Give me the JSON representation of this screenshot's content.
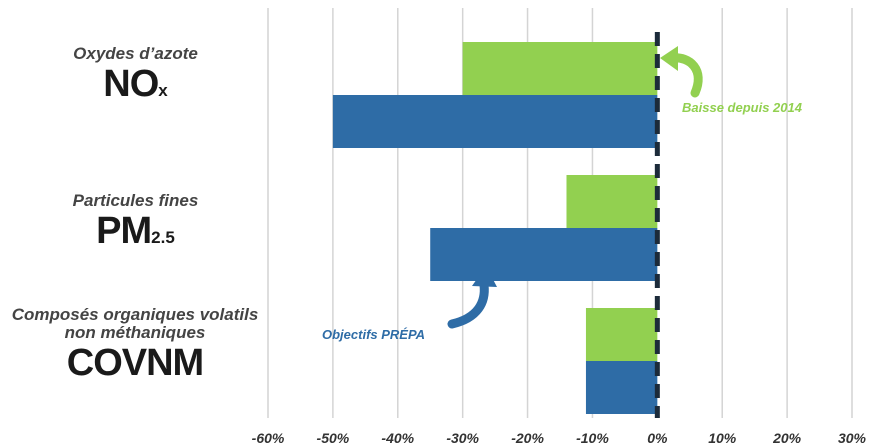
{
  "chart_data": {
    "type": "bar",
    "orientation": "horizontal",
    "categories": [
      {
        "name": "Oxydes d’azote",
        "code": "NO",
        "sub": "x"
      },
      {
        "name": "Particules fines",
        "code": "PM",
        "sub": "2.5"
      },
      {
        "name": "Composés organiques volatils non méthaniques",
        "code": "COVNM",
        "sub": ""
      }
    ],
    "series": [
      {
        "values": [
          -30,
          -14,
          -11
        ],
        "color": "#92d050"
      },
      {
        "values": [
          -50,
          -35,
          -11
        ],
        "color": "#2e6ca6"
      }
    ],
    "xlim": [
      -60,
      30
    ],
    "xticks": [
      "-60%",
      "-50%",
      "-40%",
      "-30%",
      "-20%",
      "-10%",
      "0%",
      "10%",
      "20%",
      "30%"
    ],
    "grid": true,
    "annotations": [
      {
        "text": "Baisse  depuis 2014",
        "color": "#92d050"
      },
      {
        "text": "Objectifs  PRÉPA",
        "color": "#2e6ca6"
      }
    ]
  }
}
